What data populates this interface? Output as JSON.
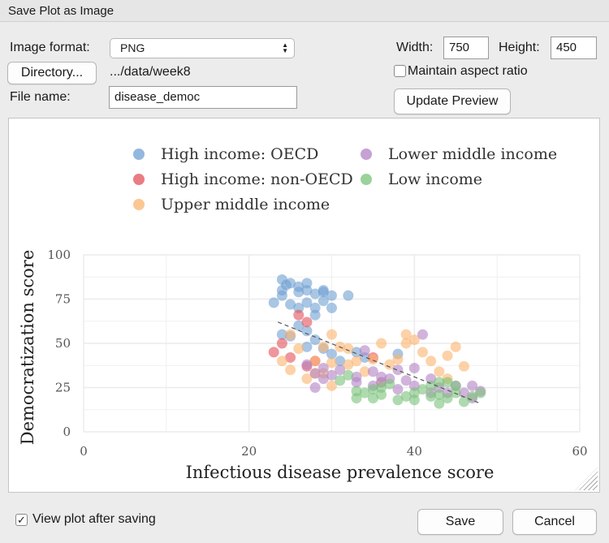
{
  "window": {
    "title": "Save Plot as Image"
  },
  "form": {
    "format_label": "Image format:",
    "format_value": "PNG",
    "directory_button": "Directory...",
    "directory_path": ".../data/week8",
    "filename_label": "File name:",
    "filename_value": "disease_democ",
    "width_label": "Width:",
    "width_value": "750",
    "height_label": "Height:",
    "height_value": "450",
    "aspect_label": "Maintain aspect ratio",
    "aspect_checked": false,
    "update_button": "Update Preview"
  },
  "footer": {
    "view_after_label": "View plot after saving",
    "view_after_checked": true,
    "save_button": "Save",
    "cancel_button": "Cancel"
  },
  "chart_data": {
    "type": "scatter",
    "xlabel": "Infectious disease prevalence score",
    "ylabel": "Democratization score",
    "xlim": [
      0,
      60
    ],
    "ylim": [
      0,
      100
    ],
    "x_ticks": [
      "0",
      "20",
      "40",
      "60"
    ],
    "y_ticks": [
      "0",
      "25",
      "50",
      "75",
      "100"
    ],
    "grid": true,
    "legend_position": "top",
    "trend_line": {
      "style": "dashed",
      "from": [
        23.5,
        62
      ],
      "to": [
        48,
        16
      ]
    },
    "series": [
      {
        "name": "High income: OECD",
        "color": "#6fa0d2",
        "points": [
          [
            24,
            86
          ],
          [
            24.5,
            83
          ],
          [
            25,
            84
          ],
          [
            24,
            80
          ],
          [
            26,
            82
          ],
          [
            27,
            84
          ],
          [
            26,
            79
          ],
          [
            27,
            80
          ],
          [
            28,
            78
          ],
          [
            29,
            80
          ],
          [
            29,
            79
          ],
          [
            30,
            77
          ],
          [
            24,
            77
          ],
          [
            23,
            73
          ],
          [
            25,
            72
          ],
          [
            26,
            70
          ],
          [
            27,
            73
          ],
          [
            28,
            70
          ],
          [
            29,
            74
          ],
          [
            30,
            70
          ],
          [
            32,
            77
          ],
          [
            28,
            66
          ],
          [
            26,
            60
          ],
          [
            27,
            57
          ],
          [
            24,
            55
          ],
          [
            25,
            54
          ],
          [
            27,
            48
          ],
          [
            28,
            52
          ],
          [
            29,
            47
          ],
          [
            30,
            44
          ],
          [
            31,
            40
          ],
          [
            33,
            45
          ],
          [
            34,
            42
          ],
          [
            38,
            44
          ]
        ]
      },
      {
        "name": "High income: non-OECD",
        "color": "#e3505a",
        "points": [
          [
            26,
            66
          ],
          [
            27,
            62
          ],
          [
            24,
            50
          ],
          [
            23,
            45
          ],
          [
            25,
            42
          ],
          [
            27,
            37
          ],
          [
            28,
            40
          ],
          [
            35,
            42
          ]
        ]
      },
      {
        "name": "Upper middle income",
        "color": "#fbb46e",
        "points": [
          [
            25,
            55
          ],
          [
            26,
            47
          ],
          [
            24,
            40
          ],
          [
            25,
            35
          ],
          [
            27,
            30
          ],
          [
            28,
            40
          ],
          [
            29,
            33
          ],
          [
            30,
            39
          ],
          [
            31,
            48
          ],
          [
            30,
            55
          ],
          [
            32,
            47
          ],
          [
            32,
            38
          ],
          [
            33,
            40
          ],
          [
            34,
            34
          ],
          [
            35,
            41
          ],
          [
            36,
            28
          ],
          [
            37,
            38
          ],
          [
            38,
            41
          ],
          [
            39,
            50
          ],
          [
            39,
            55
          ],
          [
            40,
            52
          ],
          [
            41,
            45
          ],
          [
            42,
            40
          ],
          [
            43,
            34
          ],
          [
            44,
            43
          ],
          [
            44,
            30
          ],
          [
            45,
            48
          ],
          [
            46,
            37
          ],
          [
            30,
            26
          ],
          [
            29,
            48
          ],
          [
            28,
            33
          ],
          [
            36,
            50
          ]
        ]
      },
      {
        "name": "Lower middle income",
        "color": "#b382c4",
        "points": [
          [
            27,
            38
          ],
          [
            28,
            33
          ],
          [
            29,
            30
          ],
          [
            29,
            36
          ],
          [
            30,
            32
          ],
          [
            31,
            35
          ],
          [
            33,
            31
          ],
          [
            34,
            46
          ],
          [
            35,
            34
          ],
          [
            36,
            31
          ],
          [
            36,
            28
          ],
          [
            37,
            30
          ],
          [
            38,
            24
          ],
          [
            38,
            35
          ],
          [
            39,
            29
          ],
          [
            40,
            36
          ],
          [
            40,
            26
          ],
          [
            41,
            55
          ],
          [
            42,
            30
          ],
          [
            42,
            22
          ],
          [
            43,
            25
          ],
          [
            44,
            22
          ],
          [
            45,
            26
          ],
          [
            46,
            22
          ],
          [
            47,
            26
          ],
          [
            47,
            19
          ],
          [
            48,
            23
          ],
          [
            33,
            28
          ],
          [
            35,
            26
          ],
          [
            28,
            25
          ]
        ]
      },
      {
        "name": "Low income",
        "color": "#79c27a",
        "points": [
          [
            31,
            29
          ],
          [
            32,
            32
          ],
          [
            33,
            23
          ],
          [
            33,
            19
          ],
          [
            34,
            22
          ],
          [
            35,
            24
          ],
          [
            36,
            21
          ],
          [
            36,
            25
          ],
          [
            37,
            27
          ],
          [
            38,
            18
          ],
          [
            39,
            20
          ],
          [
            40,
            18
          ],
          [
            40,
            22
          ],
          [
            41,
            24
          ],
          [
            42,
            20
          ],
          [
            43,
            21
          ],
          [
            43,
            16
          ],
          [
            44,
            19
          ],
          [
            44,
            28
          ],
          [
            45,
            22
          ],
          [
            45,
            26
          ],
          [
            46,
            17
          ],
          [
            47,
            20
          ],
          [
            48,
            22
          ],
          [
            35,
            19
          ],
          [
            42,
            26
          ],
          [
            43,
            28
          ]
        ]
      }
    ]
  }
}
